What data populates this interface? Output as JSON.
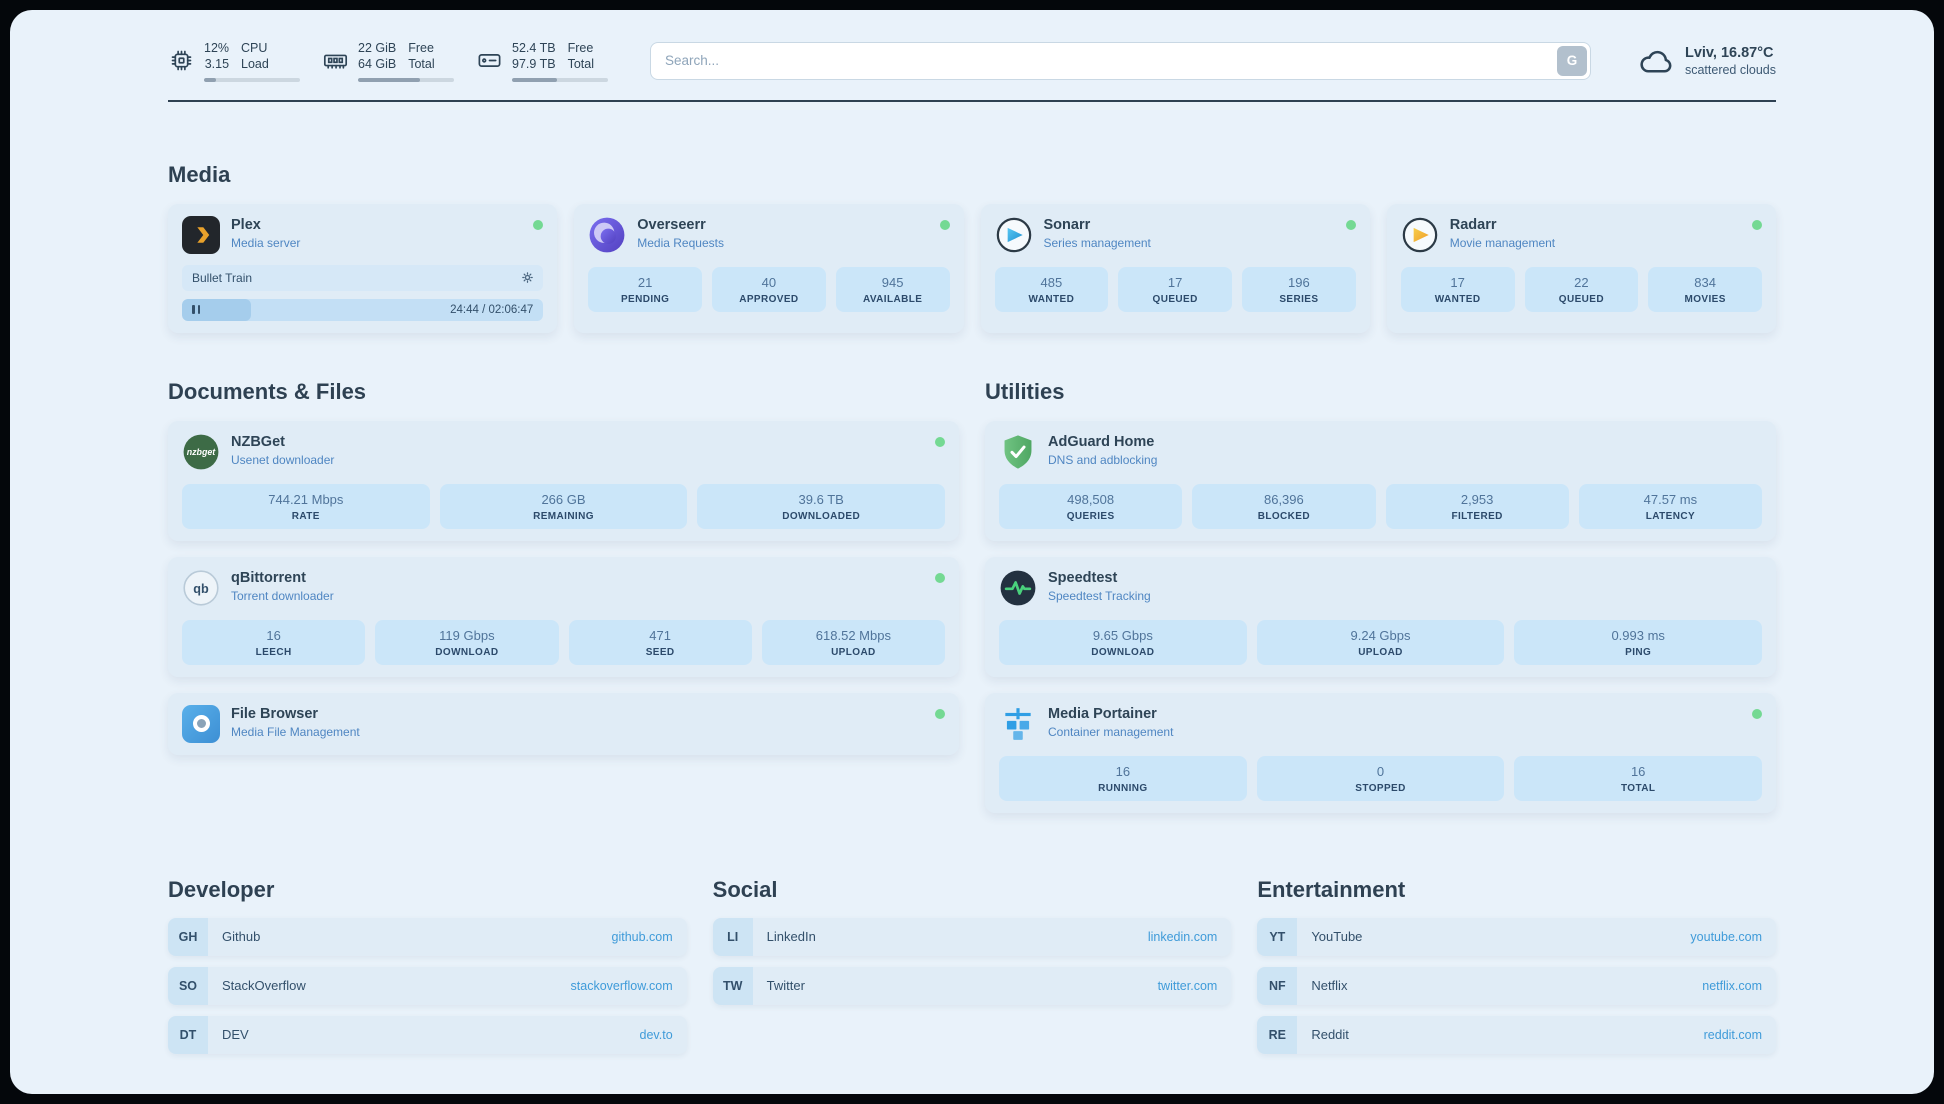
{
  "colors": {
    "status_online": "#74d993",
    "link": "#3f9bd9"
  },
  "topbar": {
    "cpu": {
      "icon": "cpu-icon",
      "usage": "12%",
      "load": "3.15",
      "label_top": "CPU",
      "label_bottom": "Load",
      "progress": 12
    },
    "memory": {
      "icon": "memory-icon",
      "free": "22 GiB",
      "total": "64 GiB",
      "label_top": "Free",
      "label_bottom": "Total",
      "progress": 65
    },
    "disk": {
      "icon": "disk-icon",
      "free": "52.4 TB",
      "total": "97.9 TB",
      "label_top": "Free",
      "label_bottom": "Total",
      "progress": 47
    },
    "search": {
      "placeholder": "Search...",
      "provider_button": "G"
    },
    "weather": {
      "icon": "cloud-icon",
      "location": "Lviv, 16.87°C",
      "condition": "scattered clouds"
    }
  },
  "sections": {
    "media": {
      "title": "Media"
    },
    "documents": {
      "title": "Documents & Files"
    },
    "utilities": {
      "title": "Utilities"
    },
    "developer": {
      "title": "Developer"
    },
    "social": {
      "title": "Social"
    },
    "entertainment": {
      "title": "Entertainment"
    }
  },
  "services": {
    "plex": {
      "icon": "plex-icon",
      "name": "Plex",
      "description": "Media server",
      "status": "online",
      "stream_title": "Bullet Train",
      "stream_time": "24:44 / 02:06:47",
      "stream_progress": 19
    },
    "overseerr": {
      "icon": "overseerr-icon",
      "name": "Overseerr",
      "description": "Media Requests",
      "status": "online",
      "stats": [
        {
          "value": "21",
          "label": "PENDING"
        },
        {
          "value": "40",
          "label": "APPROVED"
        },
        {
          "value": "945",
          "label": "AVAILABLE"
        }
      ]
    },
    "sonarr": {
      "icon": "sonarr-icon",
      "name": "Sonarr",
      "description": "Series management",
      "status": "online",
      "stats": [
        {
          "value": "485",
          "label": "WANTED"
        },
        {
          "value": "17",
          "label": "QUEUED"
        },
        {
          "value": "196",
          "label": "SERIES"
        }
      ]
    },
    "radarr": {
      "icon": "radarr-icon",
      "name": "Radarr",
      "description": "Movie management",
      "status": "online",
      "stats": [
        {
          "value": "17",
          "label": "WANTED"
        },
        {
          "value": "22",
          "label": "QUEUED"
        },
        {
          "value": "834",
          "label": "MOVIES"
        }
      ]
    },
    "nzbget": {
      "icon": "nzbget-icon",
      "name": "NZBGet",
      "description": "Usenet downloader",
      "status": "online",
      "stats": [
        {
          "value": "744.21 Mbps",
          "label": "RATE"
        },
        {
          "value": "266 GB",
          "label": "REMAINING"
        },
        {
          "value": "39.6 TB",
          "label": "DOWNLOADED"
        }
      ]
    },
    "qbittorrent": {
      "icon": "qbittorrent-icon",
      "name": "qBittorrent",
      "description": "Torrent downloader",
      "status": "online",
      "stats": [
        {
          "value": "16",
          "label": "LEECH"
        },
        {
          "value": "119 Gbps",
          "label": "DOWNLOAD"
        },
        {
          "value": "471",
          "label": "SEED"
        },
        {
          "value": "618.52 Mbps",
          "label": "UPLOAD"
        }
      ]
    },
    "filebrowser": {
      "icon": "filebrowser-icon",
      "name": "File Browser",
      "description": "Media File Management",
      "status": "online"
    },
    "adguard": {
      "icon": "adguard-icon",
      "name": "AdGuard Home",
      "description": "DNS and adblocking",
      "stats": [
        {
          "value": "498,508",
          "label": "QUERIES"
        },
        {
          "value": "86,396",
          "label": "BLOCKED"
        },
        {
          "value": "2,953",
          "label": "FILTERED"
        },
        {
          "value": "47.57 ms",
          "label": "LATENCY"
        }
      ]
    },
    "speedtest": {
      "icon": "speedtest-icon",
      "name": "Speedtest",
      "description": "Speedtest Tracking",
      "stats": [
        {
          "value": "9.65 Gbps",
          "label": "DOWNLOAD"
        },
        {
          "value": "9.24 Gbps",
          "label": "UPLOAD"
        },
        {
          "value": "0.993 ms",
          "label": "PING"
        }
      ]
    },
    "portainer": {
      "icon": "portainer-icon",
      "name": "Media Portainer",
      "description": "Container management",
      "status": "online",
      "stats": [
        {
          "value": "16",
          "label": "RUNNING"
        },
        {
          "value": "0",
          "label": "STOPPED"
        },
        {
          "value": "16",
          "label": "TOTAL"
        }
      ]
    }
  },
  "bookmarks": {
    "developer": [
      {
        "abbr": "GH",
        "name": "Github",
        "url": "github.com"
      },
      {
        "abbr": "SO",
        "name": "StackOverflow",
        "url": "stackoverflow.com"
      },
      {
        "abbr": "DT",
        "name": "DEV",
        "url": "dev.to"
      }
    ],
    "social": [
      {
        "abbr": "LI",
        "name": "LinkedIn",
        "url": "linkedin.com"
      },
      {
        "abbr": "TW",
        "name": "Twitter",
        "url": "twitter.com"
      }
    ],
    "entertainment": [
      {
        "abbr": "YT",
        "name": "YouTube",
        "url": "youtube.com"
      },
      {
        "abbr": "NF",
        "name": "Netflix",
        "url": "netflix.com"
      },
      {
        "abbr": "RE",
        "name": "Reddit",
        "url": "reddit.com"
      }
    ]
  }
}
